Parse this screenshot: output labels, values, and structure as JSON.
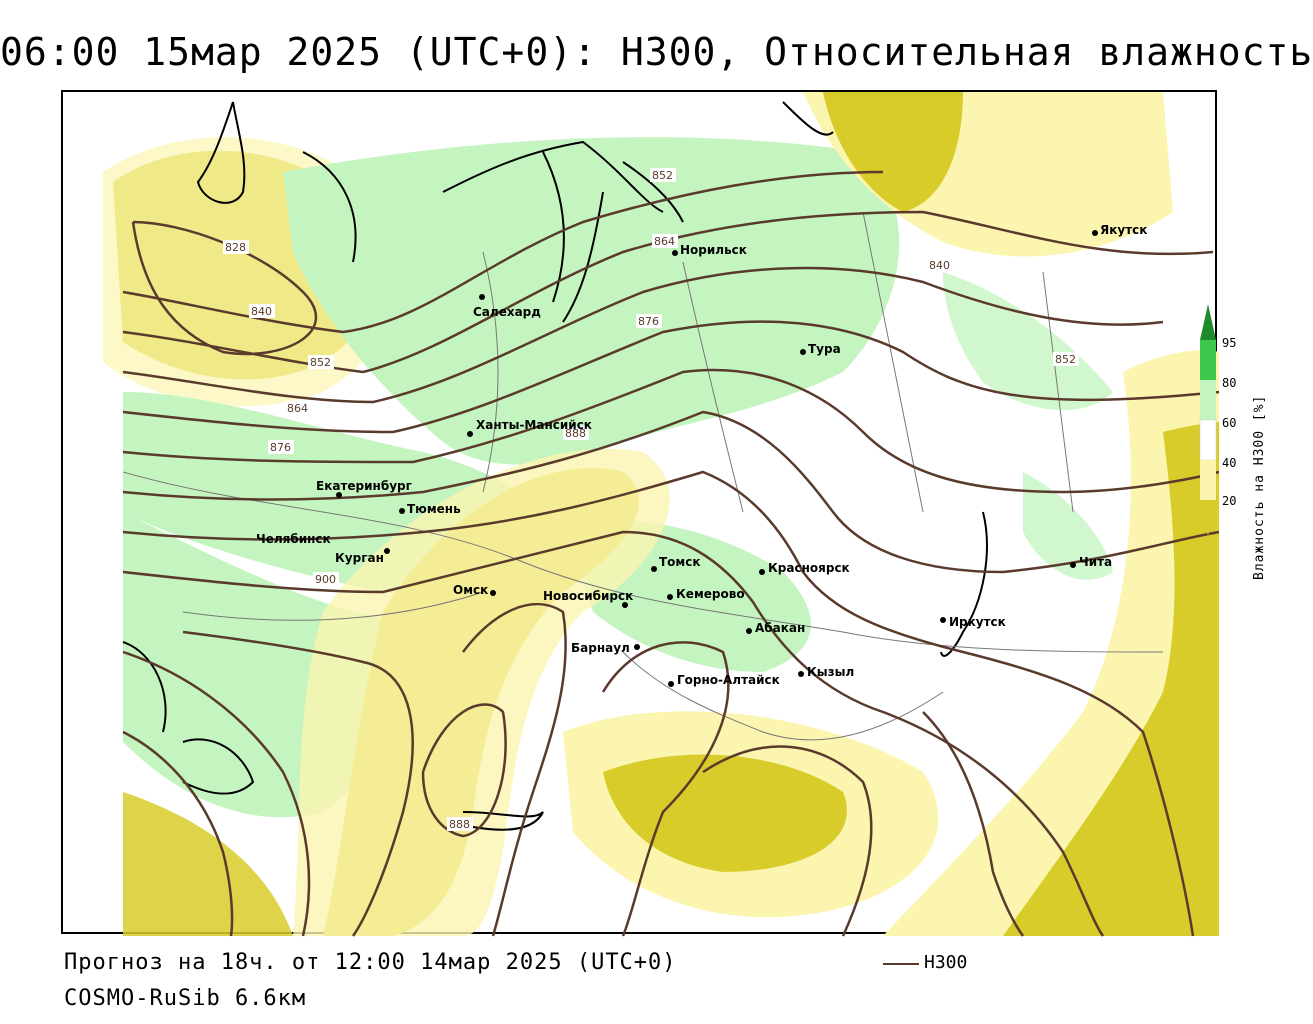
{
  "title": "06:00 15мар 2025 (UTC+0): H300, Относительная влажность",
  "footer": {
    "forecast": "Прогноз на 18ч. от 12:00 14мар 2025 (UTC+0)",
    "model": "COSMO-RuSib 6.6км"
  },
  "legend": {
    "line_label": "H300",
    "line_color": "#5a3a2c"
  },
  "colorbar": {
    "title": "Влажность на H300 [%]",
    "ticks": [
      "95",
      "80",
      "60",
      "40",
      "20"
    ],
    "colors": {
      "above_95": "#1e8a2a",
      "80_95": "#3cc84a",
      "60_80": "#c4f5c0",
      "40_60": "#ffffff",
      "20_40": "#fbf5b0",
      "below_20": "#d8cc2a"
    }
  },
  "cities": [
    {
      "name": "Салехард"
    },
    {
      "name": "Норильск"
    },
    {
      "name": "Якутск"
    },
    {
      "name": "Тура"
    },
    {
      "name": "Ханты-Мансийск"
    },
    {
      "name": "Екатеринбург"
    },
    {
      "name": "Тюмень"
    },
    {
      "name": "Челябинск"
    },
    {
      "name": "Курган"
    },
    {
      "name": "Омск"
    },
    {
      "name": "Новосибирск"
    },
    {
      "name": "Томск"
    },
    {
      "name": "Кемерово"
    },
    {
      "name": "Красноярск"
    },
    {
      "name": "Абакан"
    },
    {
      "name": "Барнаул"
    },
    {
      "name": "Горно-Алтайск"
    },
    {
      "name": "Кызыл"
    },
    {
      "name": "Иркутск"
    },
    {
      "name": "Чита"
    }
  ],
  "isolines": [
    "828",
    "840",
    "852",
    "864",
    "876",
    "888",
    "900",
    "852",
    "864",
    "876",
    "888",
    "840",
    "852"
  ]
}
